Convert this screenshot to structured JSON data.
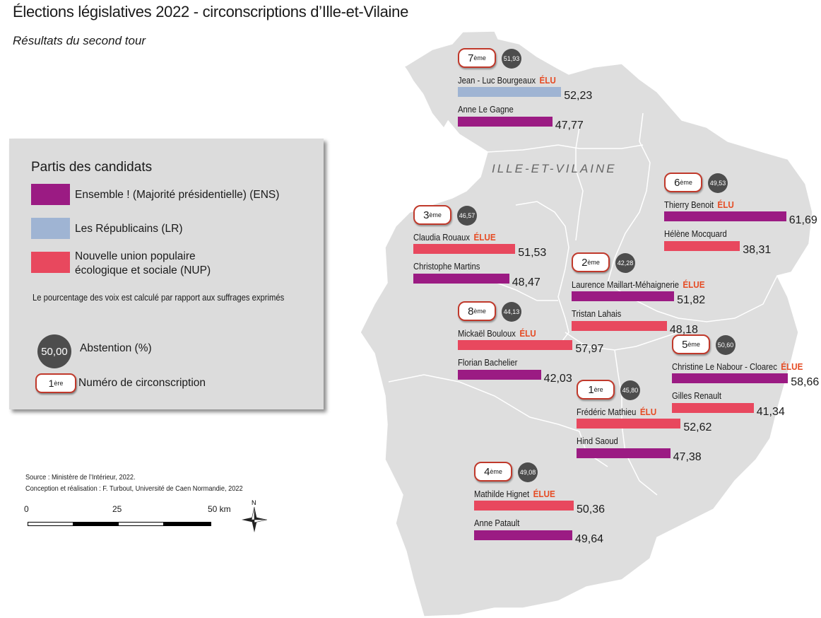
{
  "title": "Élections législatives 2022 - circonscriptions d’Ille-et-Vilaine",
  "subtitle": "Résultats du second tour",
  "map_label": "ILLE-ET-VILAINE",
  "colors": {
    "ENS": "#9b1b83",
    "LR": "#9fb4d3",
    "NUP": "#e8485e",
    "elu": "#e64b23",
    "territory": "#dedede"
  },
  "legend": {
    "title": "Partis des candidats",
    "parties": [
      {
        "code": "ENS",
        "label": "Ensemble ! (Majorité présidentielle) (ENS)"
      },
      {
        "code": "LR",
        "label": "Les Républicains (LR)"
      },
      {
        "code": "NUP",
        "label": "Nouvelle union populaire écologique et sociale (NUP)"
      }
    ],
    "note": "Le pourcentage des voix est calculé par rapport aux suffrages exprimés",
    "abstention_sample": "50,00",
    "abstention_label": "Abstention (%)",
    "circo_sample_num": "1",
    "circo_sample_sup": "ère",
    "circo_label": "Numéro de circonscription"
  },
  "source": {
    "line1": "Source : Ministère de l’Intérieur, 2022.",
    "line2": "Conception et réalisation : F. Turbout, Université de Caen Normandie, 2022"
  },
  "scale": {
    "ticks": [
      "0",
      "25",
      "50 km"
    ]
  },
  "north_label": "N",
  "circonscriptions": [
    {
      "num": "7",
      "sup": "ème",
      "abstention": "51,93",
      "candidates": [
        {
          "name": "Jean - Luc Bourgeaux",
          "party": "LR",
          "pct": 52.23,
          "pct_label": "52,23",
          "elected": "ÉLU"
        },
        {
          "name": "Anne Le Gagne",
          "party": "ENS",
          "pct": 47.77,
          "pct_label": "47,77",
          "elected": ""
        }
      ]
    },
    {
      "num": "6",
      "sup": "ème",
      "abstention": "49,53",
      "candidates": [
        {
          "name": "Thierry Benoit",
          "party": "ENS",
          "pct": 61.69,
          "pct_label": "61,69",
          "elected": "ÉLU"
        },
        {
          "name": "Hélène Mocquard",
          "party": "NUP",
          "pct": 38.31,
          "pct_label": "38,31",
          "elected": ""
        }
      ]
    },
    {
      "num": "3",
      "sup": "ème",
      "abstention": "46,57",
      "candidates": [
        {
          "name": "Claudia Rouaux",
          "party": "NUP",
          "pct": 51.53,
          "pct_label": "51,53",
          "elected": "ÉLUE"
        },
        {
          "name": "Christophe Martins",
          "party": "ENS",
          "pct": 48.47,
          "pct_label": "48,47",
          "elected": ""
        }
      ]
    },
    {
      "num": "2",
      "sup": "ème",
      "abstention": "42,28",
      "candidates": [
        {
          "name": "Laurence Maillart-Méhaignerie",
          "party": "ENS",
          "pct": 51.82,
          "pct_label": "51,82",
          "elected": "ÉLUE"
        },
        {
          "name": "Tristan Lahais",
          "party": "NUP",
          "pct": 48.18,
          "pct_label": "48,18",
          "elected": ""
        }
      ]
    },
    {
      "num": "8",
      "sup": "ème",
      "abstention": "44,13",
      "candidates": [
        {
          "name": "Mickaël Bouloux",
          "party": "NUP",
          "pct": 57.97,
          "pct_label": "57,97",
          "elected": "ÉLU"
        },
        {
          "name": "Florian Bachelier",
          "party": "ENS",
          "pct": 42.03,
          "pct_label": "42,03",
          "elected": ""
        }
      ]
    },
    {
      "num": "5",
      "sup": "ème",
      "abstention": "50,60",
      "candidates": [
        {
          "name": "Christine Le Nabour - Cloarec",
          "party": "ENS",
          "pct": 58.66,
          "pct_label": "58,66",
          "elected": "ÉLUE"
        },
        {
          "name": "Gilles Renault",
          "party": "NUP",
          "pct": 41.34,
          "pct_label": "41,34",
          "elected": ""
        }
      ]
    },
    {
      "num": "1",
      "sup": "ère",
      "abstention": "45,80",
      "candidates": [
        {
          "name": "Frédéric Mathieu",
          "party": "NUP",
          "pct": 52.62,
          "pct_label": "52,62",
          "elected": "ÉLU"
        },
        {
          "name": "Hind Saoud",
          "party": "ENS",
          "pct": 47.38,
          "pct_label": "47,38",
          "elected": ""
        }
      ]
    },
    {
      "num": "4",
      "sup": "ème",
      "abstention": "49,08",
      "candidates": [
        {
          "name": "Mathilde Hignet",
          "party": "NUP",
          "pct": 50.36,
          "pct_label": "50,36",
          "elected": "ÉLUE"
        },
        {
          "name": "Anne Patault",
          "party": "ENS",
          "pct": 49.64,
          "pct_label": "49,64",
          "elected": ""
        }
      ]
    }
  ]
}
